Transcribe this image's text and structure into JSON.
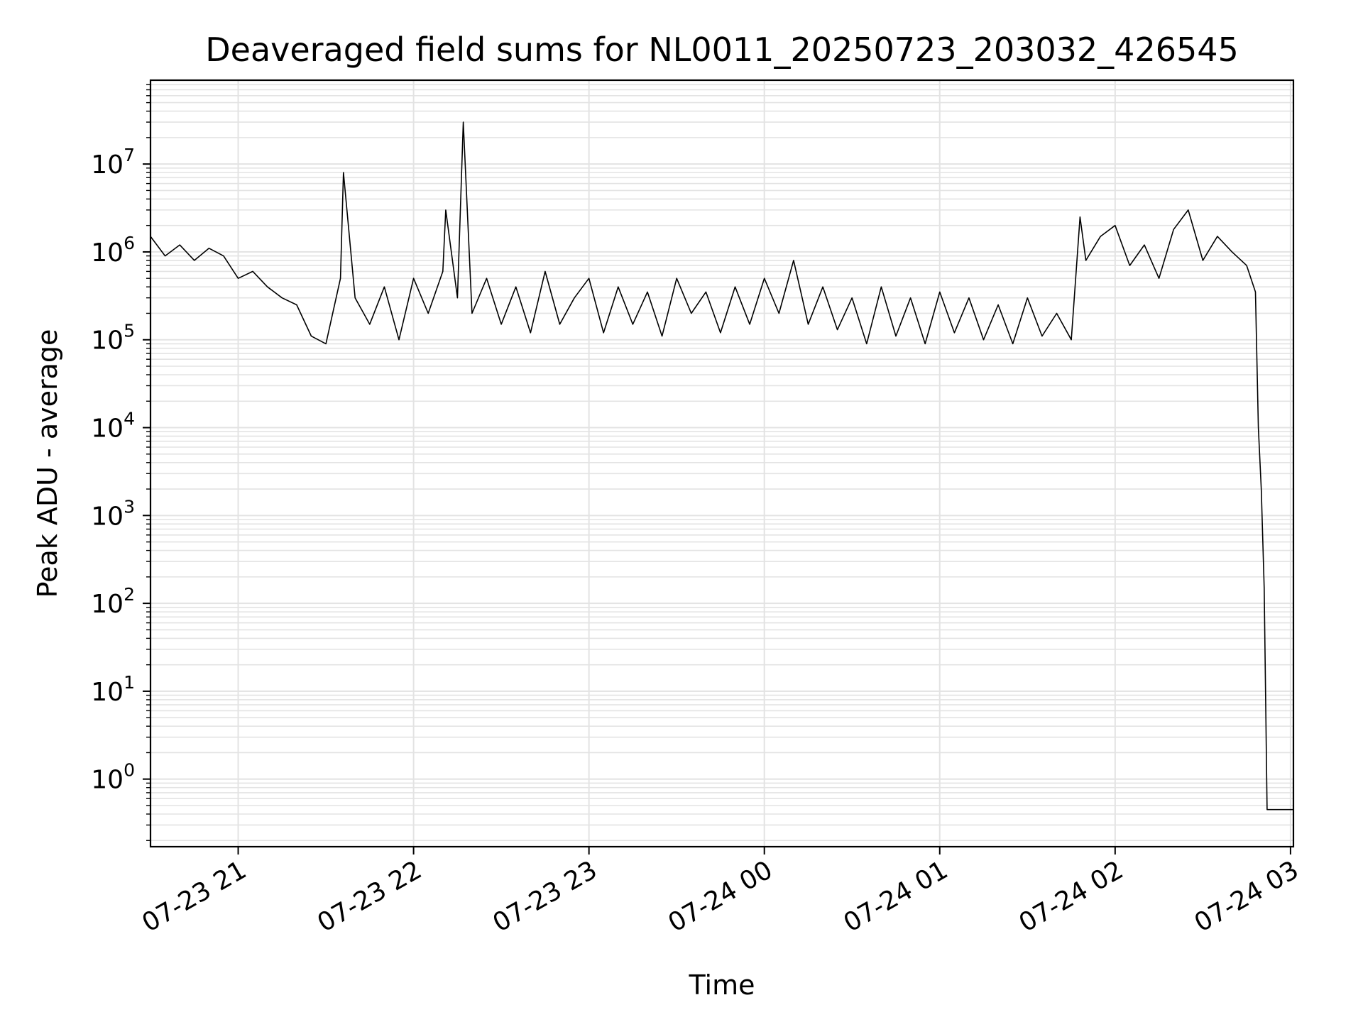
{
  "chart_data": {
    "type": "line",
    "title": "Deaveraged field sums for NL0011_20250723_203032_426545",
    "xlabel": "Time",
    "ylabel": "Peak ADU - average",
    "x_scale": "time",
    "y_scale": "log",
    "xlim": [
      "2025-07-23 20:30",
      "2025-07-24 03:01"
    ],
    "ylim": [
      0.17,
      90000000
    ],
    "grid": true,
    "line_color": "#000000",
    "grid_color": "#e3e3e3",
    "x_ticks": [
      {
        "value": "2025-07-23 21:00",
        "label": "07-23 21"
      },
      {
        "value": "2025-07-23 22:00",
        "label": "07-23 22"
      },
      {
        "value": "2025-07-23 23:00",
        "label": "07-23 23"
      },
      {
        "value": "2025-07-24 00:00",
        "label": "07-24 00"
      },
      {
        "value": "2025-07-24 01:00",
        "label": "07-24 01"
      },
      {
        "value": "2025-07-24 02:00",
        "label": "07-24 02"
      },
      {
        "value": "2025-07-24 03:00",
        "label": "07-24 03"
      }
    ],
    "y_ticks": [
      {
        "value": 1,
        "base": "10",
        "exp": "0"
      },
      {
        "value": 10,
        "base": "10",
        "exp": "1"
      },
      {
        "value": 100,
        "base": "10",
        "exp": "2"
      },
      {
        "value": 1000,
        "base": "10",
        "exp": "3"
      },
      {
        "value": 10000,
        "base": "10",
        "exp": "4"
      },
      {
        "value": 100000,
        "base": "10",
        "exp": "5"
      },
      {
        "value": 1000000,
        "base": "10",
        "exp": "6"
      },
      {
        "value": 10000000,
        "base": "10",
        "exp": "7"
      }
    ],
    "series": [
      {
        "x": [
          "2025-07-23 20:30",
          "2025-07-23 20:35",
          "2025-07-23 20:40",
          "2025-07-23 20:45",
          "2025-07-23 20:50",
          "2025-07-23 20:55",
          "2025-07-23 21:00",
          "2025-07-23 21:05",
          "2025-07-23 21:10",
          "2025-07-23 21:15",
          "2025-07-23 21:20",
          "2025-07-23 21:25",
          "2025-07-23 21:30",
          "2025-07-23 21:35",
          "2025-07-23 21:36",
          "2025-07-23 21:40",
          "2025-07-23 21:45",
          "2025-07-23 21:50",
          "2025-07-23 21:55",
          "2025-07-23 22:00",
          "2025-07-23 22:05",
          "2025-07-23 22:10",
          "2025-07-23 22:11",
          "2025-07-23 22:15",
          "2025-07-23 22:17",
          "2025-07-23 22:20",
          "2025-07-23 22:25",
          "2025-07-23 22:30",
          "2025-07-23 22:35",
          "2025-07-23 22:40",
          "2025-07-23 22:45",
          "2025-07-23 22:50",
          "2025-07-23 22:55",
          "2025-07-23 23:00",
          "2025-07-23 23:05",
          "2025-07-23 23:10",
          "2025-07-23 23:15",
          "2025-07-23 23:20",
          "2025-07-23 23:25",
          "2025-07-23 23:30",
          "2025-07-23 23:35",
          "2025-07-23 23:40",
          "2025-07-23 23:45",
          "2025-07-23 23:50",
          "2025-07-23 23:55",
          "2025-07-24 00:00",
          "2025-07-24 00:05",
          "2025-07-24 00:10",
          "2025-07-24 00:15",
          "2025-07-24 00:20",
          "2025-07-24 00:25",
          "2025-07-24 00:30",
          "2025-07-24 00:35",
          "2025-07-24 00:40",
          "2025-07-24 00:45",
          "2025-07-24 00:50",
          "2025-07-24 00:55",
          "2025-07-24 01:00",
          "2025-07-24 01:05",
          "2025-07-24 01:10",
          "2025-07-24 01:15",
          "2025-07-24 01:20",
          "2025-07-24 01:25",
          "2025-07-24 01:30",
          "2025-07-24 01:35",
          "2025-07-24 01:40",
          "2025-07-24 01:45",
          "2025-07-24 01:48",
          "2025-07-24 01:50",
          "2025-07-24 01:55",
          "2025-07-24 02:00",
          "2025-07-24 02:05",
          "2025-07-24 02:10",
          "2025-07-24 02:15",
          "2025-07-24 02:20",
          "2025-07-24 02:25",
          "2025-07-24 02:30",
          "2025-07-24 02:35",
          "2025-07-24 02:40",
          "2025-07-24 02:45",
          "2025-07-24 02:48",
          "2025-07-24 02:49",
          "2025-07-24 02:50",
          "2025-07-24 02:51",
          "2025-07-24 02:52",
          "2025-07-24 02:55",
          "2025-07-24 03:00",
          "2025-07-24 03:01"
        ],
        "y": [
          1500000,
          900000,
          1200000,
          800000,
          1100000,
          900000,
          500000,
          600000,
          400000,
          300000,
          250000,
          110000,
          90000,
          500000,
          8000000,
          300000,
          150000,
          400000,
          100000,
          500000,
          200000,
          600000,
          3000000,
          300000,
          30000000,
          200000,
          500000,
          150000,
          400000,
          120000,
          600000,
          150000,
          300000,
          500000,
          120000,
          400000,
          150000,
          350000,
          110000,
          500000,
          200000,
          350000,
          120000,
          400000,
          150000,
          500000,
          200000,
          800000,
          150000,
          400000,
          130000,
          300000,
          90000,
          400000,
          110000,
          300000,
          90000,
          350000,
          120000,
          300000,
          100000,
          250000,
          90000,
          300000,
          110000,
          200000,
          100000,
          2500000,
          800000,
          1500000,
          2000000,
          700000,
          1200000,
          500000,
          1800000,
          3000000,
          800000,
          1500000,
          1000000,
          700000,
          350000,
          10000,
          2000,
          150,
          0.45,
          0.45,
          0.45,
          0.45
        ]
      }
    ]
  }
}
